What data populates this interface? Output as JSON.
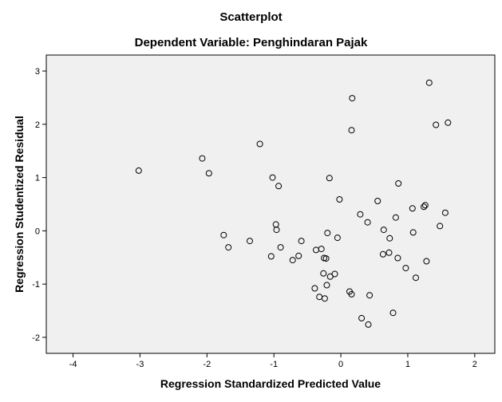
{
  "chart_data": {
    "type": "scatter",
    "title": "Scatterplot",
    "subtitle": "Dependent Variable: Penghindaran Pajak",
    "xlabel": "Regression Standardized Predicted Value",
    "ylabel": "Regression Studentized Residual",
    "xlim": [
      -4.4,
      2.3
    ],
    "ylim": [
      -2.3,
      3.3
    ],
    "xticks": [
      -4,
      -3,
      -2,
      -1,
      0,
      1,
      2
    ],
    "yticks": [
      -2,
      -1,
      0,
      1,
      2,
      3
    ],
    "grid": false,
    "plot_background": "#f0f0f0",
    "marker": "open-circle",
    "marker_color": "#000000",
    "points": [
      [
        -3.02,
        1.13
      ],
      [
        -2.07,
        1.36
      ],
      [
        -1.97,
        1.08
      ],
      [
        -1.75,
        -0.08
      ],
      [
        -1.68,
        -0.31
      ],
      [
        -1.36,
        -0.19
      ],
      [
        -1.21,
        1.63
      ],
      [
        -1.04,
        -0.48
      ],
      [
        -1.02,
        1.0
      ],
      [
        -0.97,
        0.12
      ],
      [
        -0.96,
        0.02
      ],
      [
        -0.93,
        0.84
      ],
      [
        -0.9,
        -0.31
      ],
      [
        -0.72,
        -0.55
      ],
      [
        -0.63,
        -0.47
      ],
      [
        -0.59,
        -0.19
      ],
      [
        -0.39,
        -1.08
      ],
      [
        -0.37,
        -0.36
      ],
      [
        -0.32,
        -1.24
      ],
      [
        -0.29,
        -0.34
      ],
      [
        -0.26,
        -0.8
      ],
      [
        -0.25,
        -0.51
      ],
      [
        -0.24,
        -1.27
      ],
      [
        -0.22,
        -0.52
      ],
      [
        -0.21,
        -1.02
      ],
      [
        -0.2,
        -0.04
      ],
      [
        -0.16,
        -0.86
      ],
      [
        -0.17,
        0.99
      ],
      [
        -0.09,
        -0.81
      ],
      [
        -0.05,
        -0.13
      ],
      [
        -0.02,
        0.59
      ],
      [
        0.13,
        -1.14
      ],
      [
        0.16,
        -1.19
      ],
      [
        0.16,
        1.89
      ],
      [
        0.17,
        2.49
      ],
      [
        0.29,
        0.31
      ],
      [
        0.31,
        -1.64
      ],
      [
        0.4,
        0.16
      ],
      [
        0.41,
        -1.76
      ],
      [
        0.43,
        -1.21
      ],
      [
        0.55,
        0.56
      ],
      [
        0.63,
        -0.44
      ],
      [
        0.64,
        0.02
      ],
      [
        0.72,
        -0.41
      ],
      [
        0.73,
        -0.14
      ],
      [
        0.78,
        -1.54
      ],
      [
        0.82,
        0.25
      ],
      [
        0.85,
        -0.51
      ],
      [
        0.86,
        0.89
      ],
      [
        0.97,
        -0.7
      ],
      [
        1.07,
        0.42
      ],
      [
        1.08,
        -0.03
      ],
      [
        1.12,
        -0.88
      ],
      [
        1.24,
        0.45
      ],
      [
        1.26,
        0.48
      ],
      [
        1.28,
        -0.57
      ],
      [
        1.32,
        2.78
      ],
      [
        1.42,
        1.99
      ],
      [
        1.48,
        0.09
      ],
      [
        1.56,
        0.34
      ],
      [
        1.6,
        2.03
      ]
    ]
  }
}
